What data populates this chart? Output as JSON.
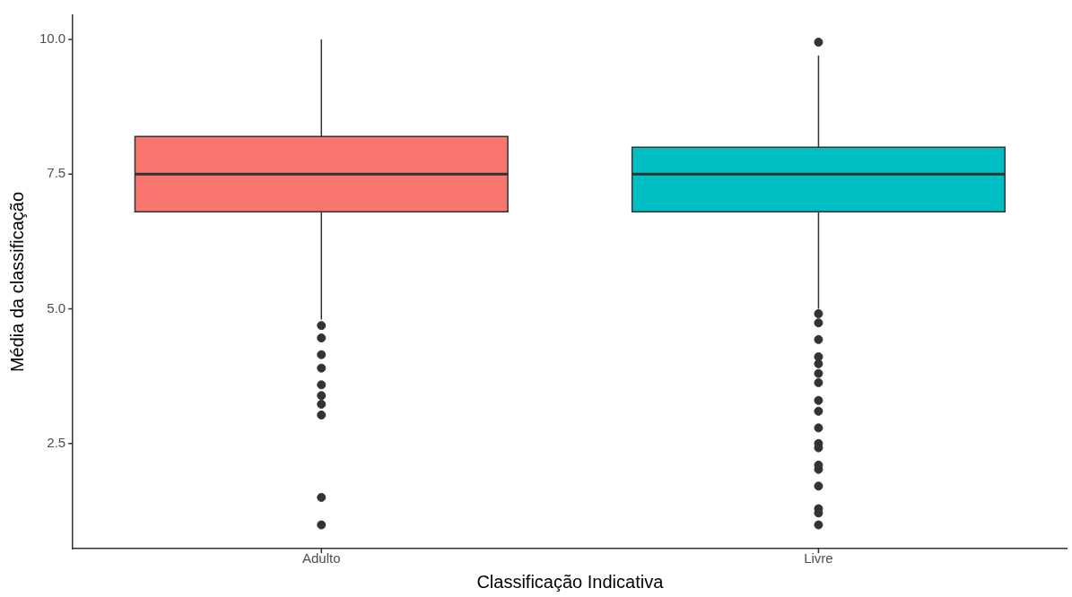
{
  "chart_data": {
    "type": "box",
    "xlabel": "Classificação Indicativa",
    "ylabel": "Média da classificação",
    "categories": [
      "Adulto",
      "Livre"
    ],
    "colors": [
      "#f8766d",
      "#00bfc4"
    ],
    "boxes": [
      {
        "low": 4.8,
        "q1": 6.8,
        "median": 7.5,
        "q3": 8.2,
        "high": 10.0,
        "outliers": [
          4.69,
          4.46,
          4.15,
          3.9,
          3.59,
          3.39,
          3.23,
          3.03,
          1.5,
          0.99
        ]
      },
      {
        "low": 5.0,
        "q1": 6.8,
        "median": 7.5,
        "q3": 8.0,
        "high": 9.7,
        "outliers": [
          9.95,
          4.91,
          4.74,
          4.43,
          4.11,
          3.98,
          3.8,
          3.63,
          3.3,
          3.1,
          2.79,
          2.5,
          2.42,
          2.1,
          2.02,
          1.71,
          1.29,
          1.21,
          0.99
        ]
      }
    ],
    "ylim": [
      0.55,
      10.45
    ],
    "yticks": [
      2.5,
      {
        "value": 5,
        "label": "5.0"
      },
      7.5,
      {
        "value": 10,
        "label": "10.0"
      }
    ],
    "grid": false,
    "legend": false
  }
}
